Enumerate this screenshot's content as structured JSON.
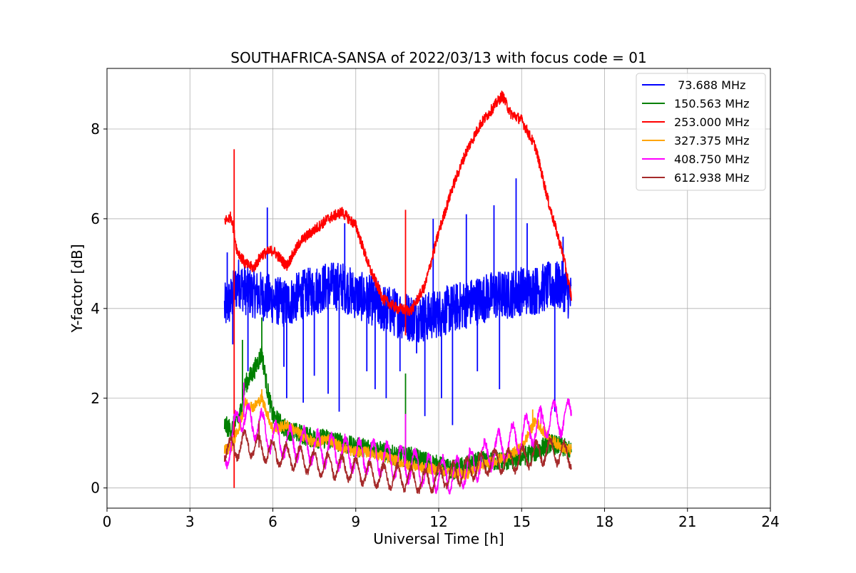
{
  "chart_data": {
    "type": "line",
    "title": "SOUTHAFRICA-SANSA of 2022/03/13 with focus code = 01",
    "xlabel": "Universal Time [h]",
    "ylabel": "Y-factor [dB]",
    "xlim": [
      0,
      24
    ],
    "ylim": [
      -0.45,
      9.35
    ],
    "xticks": [
      0,
      3,
      6,
      9,
      12,
      15,
      18,
      21,
      24
    ],
    "yticks": [
      0,
      2,
      4,
      6,
      8
    ],
    "grid": true,
    "legend_position": "top-right",
    "series": [
      {
        "name": "73.688 MHz",
        "legend_label": " 73.688 MHz",
        "color": "#0000ff",
        "noise": 0.55,
        "x": [
          4.25,
          4.5,
          4.75,
          5.0,
          5.5,
          6.0,
          6.5,
          7.0,
          7.5,
          8.0,
          8.5,
          9.0,
          9.5,
          10.0,
          10.5,
          11.0,
          11.5,
          12.0,
          12.5,
          13.0,
          13.5,
          14.0,
          14.5,
          15.0,
          15.5,
          16.0,
          16.5,
          16.8
        ],
        "values": [
          4.0,
          4.2,
          4.6,
          4.4,
          4.3,
          4.2,
          4.1,
          4.3,
          4.4,
          4.5,
          4.5,
          4.3,
          4.2,
          4.0,
          3.9,
          3.8,
          3.8,
          3.9,
          4.0,
          4.1,
          4.2,
          4.3,
          4.3,
          4.4,
          4.4,
          4.5,
          4.5,
          4.2
        ],
        "spikes": [
          [
            4.35,
            5.25
          ],
          [
            4.55,
            3.2
          ],
          [
            5.1,
            2.6
          ],
          [
            5.8,
            6.25
          ],
          [
            6.4,
            2.7
          ],
          [
            6.5,
            2.0
          ],
          [
            7.1,
            1.9
          ],
          [
            7.5,
            2.5
          ],
          [
            8.0,
            2.1
          ],
          [
            8.4,
            1.7
          ],
          [
            8.6,
            5.9
          ],
          [
            9.4,
            2.6
          ],
          [
            9.7,
            2.2
          ],
          [
            10.1,
            2.0
          ],
          [
            10.6,
            2.6
          ],
          [
            11.2,
            3.0
          ],
          [
            11.5,
            1.6
          ],
          [
            11.8,
            6.0
          ],
          [
            12.1,
            2.0
          ],
          [
            12.5,
            1.4
          ],
          [
            13.0,
            6.1
          ],
          [
            13.4,
            2.6
          ],
          [
            14.0,
            6.3
          ],
          [
            14.2,
            2.2
          ],
          [
            14.8,
            6.9
          ],
          [
            15.2,
            5.9
          ],
          [
            15.5,
            4.9
          ],
          [
            16.2,
            1.7
          ],
          [
            16.5,
            5.6
          ]
        ]
      },
      {
        "name": "150.563 MHz",
        "legend_label": "150.563 MHz",
        "color": "#008000",
        "noise": 0.22,
        "x": [
          4.25,
          4.5,
          4.8,
          5.0,
          5.3,
          5.6,
          5.8,
          6.0,
          6.5,
          7.0,
          7.5,
          8.0,
          8.5,
          9.0,
          9.5,
          10.0,
          10.5,
          11.0,
          11.5,
          12.0,
          12.5,
          13.0,
          13.5,
          14.0,
          14.5,
          15.0,
          15.5,
          16.0,
          16.5,
          16.8
        ],
        "values": [
          1.4,
          1.3,
          1.6,
          2.3,
          2.6,
          3.0,
          2.2,
          1.6,
          1.3,
          1.2,
          1.1,
          1.1,
          1.0,
          0.9,
          0.9,
          0.8,
          0.7,
          0.7,
          0.6,
          0.5,
          0.4,
          0.5,
          0.6,
          0.6,
          0.6,
          0.7,
          0.8,
          1.0,
          0.9,
          0.8
        ],
        "spikes": [
          [
            4.9,
            3.3
          ],
          [
            5.6,
            3.8
          ],
          [
            10.8,
            2.55
          ]
        ]
      },
      {
        "name": "253.000 MHz",
        "legend_label": "253.000 MHz",
        "color": "#ff0000",
        "noise": 0.12,
        "x": [
          4.25,
          4.5,
          4.7,
          5.0,
          5.3,
          5.6,
          6.0,
          6.5,
          7.0,
          7.5,
          8.0,
          8.5,
          9.0,
          9.5,
          10.0,
          10.5,
          11.0,
          11.5,
          12.0,
          12.5,
          13.0,
          13.5,
          14.0,
          14.3,
          14.6,
          15.0,
          15.5,
          16.0,
          16.5,
          16.8
        ],
        "values": [
          5.95,
          6.05,
          5.3,
          5.0,
          4.9,
          5.2,
          5.3,
          4.95,
          5.5,
          5.75,
          6.0,
          6.15,
          5.85,
          4.9,
          4.2,
          4.0,
          3.95,
          4.5,
          5.7,
          6.7,
          7.5,
          8.1,
          8.5,
          8.75,
          8.35,
          8.2,
          7.6,
          6.3,
          5.2,
          4.25
        ],
        "spikes": [
          [
            4.6,
            7.55
          ],
          [
            4.6,
            0.0
          ],
          [
            10.8,
            6.2
          ],
          [
            10.8,
            3.4
          ]
        ]
      },
      {
        "name": "327.375 MHz",
        "legend_label": "327.375 MHz",
        "color": "#ffa500",
        "noise": 0.12,
        "x": [
          4.25,
          4.5,
          4.8,
          5.0,
          5.3,
          5.6,
          6.0,
          6.5,
          7.0,
          7.5,
          8.0,
          8.5,
          9.0,
          9.5,
          10.0,
          10.5,
          11.0,
          11.5,
          12.0,
          12.5,
          13.0,
          13.5,
          14.0,
          14.5,
          15.0,
          15.5,
          16.0,
          16.5,
          16.8
        ],
        "values": [
          0.85,
          0.9,
          1.4,
          1.9,
          1.8,
          2.0,
          1.3,
          1.4,
          1.2,
          1.0,
          1.1,
          0.9,
          0.8,
          0.8,
          0.7,
          0.6,
          0.5,
          0.45,
          0.4,
          0.35,
          0.3,
          0.5,
          0.6,
          0.7,
          0.9,
          1.5,
          1.1,
          0.9,
          0.85
        ],
        "spikes": [
          [
            5.6,
            2.2
          ],
          [
            15.4,
            1.75
          ]
        ]
      },
      {
        "name": "408.750 MHz",
        "legend_label": "408.750 MHz",
        "color": "#ff00ff",
        "noise": 0.1,
        "wave": 0.35,
        "x": [
          4.25,
          4.5,
          4.8,
          5.0,
          5.5,
          6.0,
          6.5,
          7.0,
          7.5,
          8.0,
          8.5,
          9.0,
          9.5,
          10.0,
          10.5,
          11.0,
          11.5,
          12.0,
          12.5,
          13.0,
          13.5,
          14.0,
          14.5,
          15.0,
          15.5,
          16.0,
          16.5,
          16.8
        ],
        "values": [
          0.8,
          0.9,
          1.8,
          1.5,
          1.4,
          1.1,
          1.0,
          1.0,
          0.9,
          0.85,
          0.8,
          0.7,
          0.7,
          0.65,
          0.6,
          0.5,
          0.4,
          0.3,
          0.3,
          0.45,
          0.6,
          0.85,
          1.0,
          1.2,
          1.35,
          1.55,
          1.55,
          1.65
        ],
        "spikes": [
          [
            4.95,
            2.35
          ],
          [
            10.8,
            1.65
          ],
          [
            15.7,
            1.8
          ]
        ]
      },
      {
        "name": "612.938 MHz",
        "legend_label": "612.938 MHz",
        "color": "#a52a2a",
        "noise": 0.08,
        "wave": 0.25,
        "x": [
          4.25,
          4.5,
          5.0,
          5.5,
          6.0,
          6.5,
          7.0,
          7.5,
          8.0,
          8.5,
          9.0,
          9.5,
          10.0,
          10.5,
          11.0,
          11.5,
          12.0,
          12.5,
          13.0,
          13.5,
          14.0,
          14.5,
          15.0,
          15.5,
          16.0,
          16.5,
          16.8
        ],
        "values": [
          0.85,
          0.85,
          1.0,
          0.9,
          0.8,
          0.7,
          0.65,
          0.55,
          0.5,
          0.45,
          0.4,
          0.3,
          0.25,
          0.25,
          0.2,
          0.15,
          0.25,
          0.3,
          0.4,
          0.5,
          0.6,
          0.6,
          0.65,
          0.75,
          0.85,
          0.75,
          0.7
        ],
        "spikes": [
          [
            5.5,
            1.5
          ]
        ]
      }
    ]
  }
}
